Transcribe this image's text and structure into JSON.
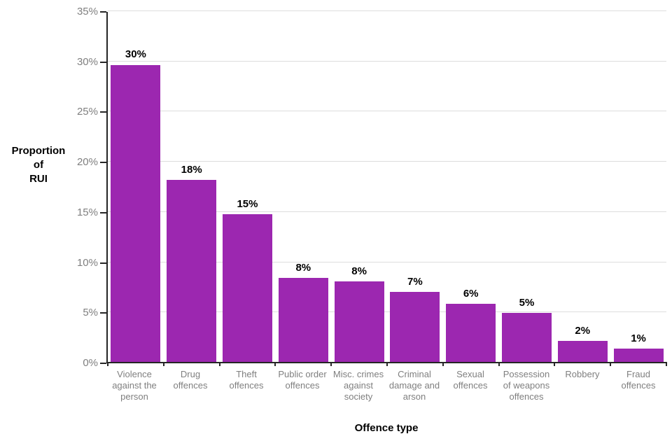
{
  "chart_data": {
    "type": "bar",
    "title": "",
    "xlabel": "Offence type",
    "ylabel": "Proportion of RUI",
    "ylabel_display": "Proportion\nof\nRUI",
    "ylim": [
      0,
      35
    ],
    "ytick_step": 5,
    "yticks": [
      "0%",
      "5%",
      "10%",
      "15%",
      "20%",
      "25%",
      "30%",
      "35%"
    ],
    "grid": "horizontal",
    "legend_position": "none",
    "categories": [
      "Violence against the person",
      "Drug offences",
      "Theft offences",
      "Public order offences",
      "Misc. crimes against society",
      "Criminal damage and arson",
      "Sexual offences",
      "Possession of weapons offences",
      "Robbery",
      "Fraud offences"
    ],
    "values": [
      29.6,
      18.1,
      14.7,
      8.4,
      8.0,
      7.0,
      5.8,
      4.9,
      2.1,
      1.3
    ],
    "value_labels": [
      "30%",
      "18%",
      "15%",
      "8%",
      "8%",
      "7%",
      "6%",
      "5%",
      "2%",
      "1%"
    ],
    "colors": {
      "bar": "#9c27b0",
      "gridline": "#dddddd",
      "axis": "#262626",
      "tick_text": "#7f7f7f",
      "label_text": "#000000"
    }
  }
}
